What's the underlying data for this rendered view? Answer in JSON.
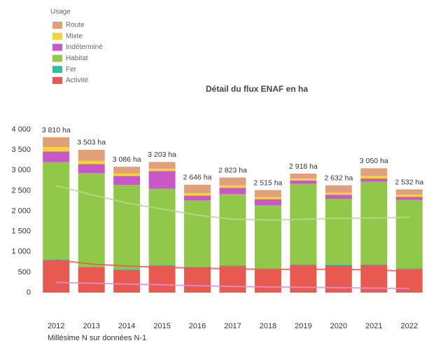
{
  "chart_data": {
    "type": "stacked_bar",
    "title": "Détail du flux ENAF en ha",
    "x_label": "Millésime N sur données N-1",
    "legend_title": "Usage",
    "categories": [
      "2012",
      "2013",
      "2014",
      "2015",
      "2016",
      "2017",
      "2018",
      "2019",
      "2020",
      "2021",
      "2022"
    ],
    "series": [
      {
        "name": "Activité",
        "color": "#e85a50",
        "values": [
          800,
          620,
          560,
          660,
          620,
          650,
          560,
          680,
          670,
          680,
          580
        ]
      },
      {
        "name": "Fer",
        "color": "#30c0a0",
        "values": [
          20,
          20,
          20,
          20,
          20,
          20,
          20,
          20,
          20,
          20,
          20
        ]
      },
      {
        "name": "Habitat",
        "color": "#92c84a",
        "values": [
          2380,
          2290,
          2060,
          1870,
          1620,
          1750,
          1560,
          1970,
          1610,
          2020,
          1670
        ]
      },
      {
        "name": "Indéterminé",
        "color": "#c857c8",
        "values": [
          260,
          220,
          220,
          430,
          120,
          150,
          150,
          80,
          100,
          80,
          80
        ]
      },
      {
        "name": "Mixte",
        "color": "#f5d33a",
        "values": [
          110,
          80,
          60,
          60,
          60,
          60,
          50,
          50,
          50,
          60,
          50
        ]
      },
      {
        "name": "Route",
        "color": "#e0a07a",
        "values": [
          240,
          273,
          166,
          163,
          206,
          193,
          175,
          118,
          182,
          190,
          132
        ]
      }
    ],
    "totals": [
      3810,
      3503,
      3086,
      3203,
      2646,
      2823,
      2515,
      2918,
      2632,
      3050,
      2532
    ],
    "total_labels": [
      "3 810 ha",
      "3 503 ha",
      "3 086 ha",
      "3 203 ha",
      "2 646 ha",
      "2 823 ha",
      "2 515 ha",
      "2 918 ha",
      "2 632 ha",
      "3 050 ha",
      "2 532 ha"
    ],
    "trend_lines": [
      {
        "color": "#b8d88a",
        "values": [
          2620,
          2400,
          2200,
          2050,
          1900,
          1800,
          1780,
          1800,
          1820,
          1830,
          1850
        ]
      },
      {
        "color": "#e85a50",
        "values": [
          800,
          700,
          650,
          620,
          600,
          580,
          570,
          570,
          570,
          560,
          520
        ]
      },
      {
        "color": "#d890d8",
        "values": [
          250,
          230,
          210,
          190,
          170,
          150,
          140,
          130,
          120,
          110,
          100
        ]
      }
    ],
    "ylim": [
      0,
      4000
    ],
    "yticks": [
      0,
      500,
      {
        "value": 1000,
        "label": "1 000"
      },
      {
        "value": 1500,
        "label": "1 500"
      },
      {
        "value": 2000,
        "label": "2 000"
      },
      {
        "value": 2500,
        "label": "2 500"
      },
      {
        "value": 3000,
        "label": "3 000"
      },
      {
        "value": 3500,
        "label": "3 500"
      },
      {
        "value": 4000,
        "label": "4 000"
      }
    ]
  }
}
